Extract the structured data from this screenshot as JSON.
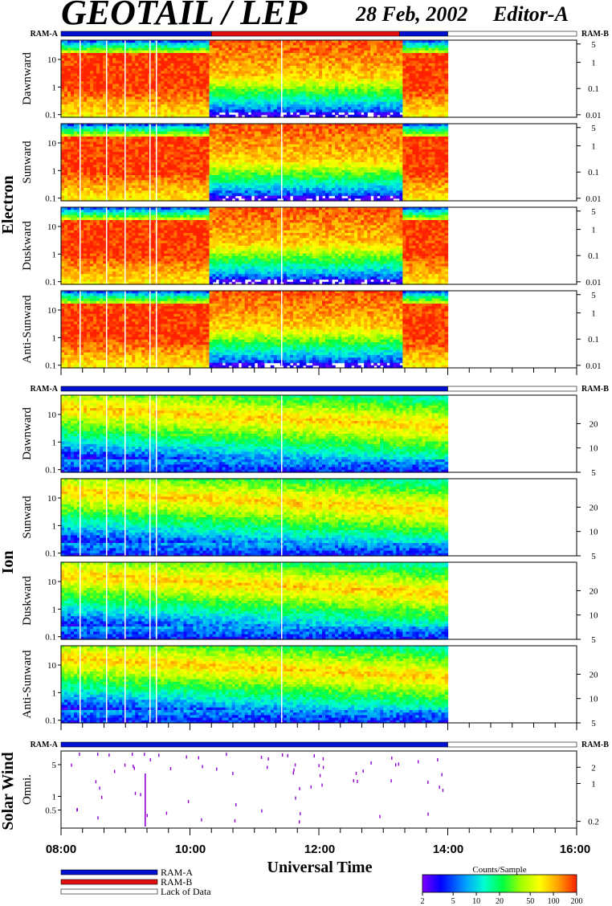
{
  "header": {
    "title": "GEOTAIL / LEP",
    "date": "28 Feb, 2002",
    "editor": "Editor-A"
  },
  "colors": {
    "ram_a": "#0010d0",
    "ram_b": "#e01010",
    "lack_of_data": "#ffffff",
    "colormap": [
      "#8000ff",
      "#0000ff",
      "#00a0ff",
      "#00ffd0",
      "#00ff40",
      "#a0ff00",
      "#ffff00",
      "#ffa000",
      "#ff2000"
    ]
  },
  "status_bars": [
    {
      "label_left": "RAM-A",
      "label_right": "RAM-B",
      "segments": [
        {
          "from": "08:00",
          "to": "10:20",
          "mode": "RAM-A"
        },
        {
          "from": "10:20",
          "to": "13:15",
          "mode": "RAM-B"
        },
        {
          "from": "13:15",
          "to": "14:00",
          "mode": "RAM-A"
        },
        {
          "from": "14:00",
          "to": "16:00",
          "mode": "Lack of Data"
        }
      ]
    },
    {
      "label_left": "RAM-A",
      "label_right": "RAM-B",
      "segments": [
        {
          "from": "08:00",
          "to": "14:00",
          "mode": "RAM-A"
        },
        {
          "from": "14:00",
          "to": "16:00",
          "mode": "Lack of Data"
        }
      ]
    },
    {
      "label_left": "RAM-A",
      "label_right": "RAM-B",
      "segments": [
        {
          "from": "08:00",
          "to": "14:00",
          "mode": "RAM-A"
        },
        {
          "from": "14:00",
          "to": "16:00",
          "mode": "Lack of Data"
        }
      ]
    }
  ],
  "chart_data": {
    "type": "heatmap",
    "x_axis": {
      "range": [
        "08:00",
        "16:00"
      ],
      "tick_labels": [
        "08:00",
        "10:00",
        "12:00",
        "14:00",
        "16:00"
      ],
      "title": "Universal Time"
    },
    "data_end": "14:00",
    "groups": [
      {
        "name": "Electron",
        "left_ticks": [
          "0.1",
          "1",
          "10"
        ],
        "left_range": [
          0.08,
          50
        ],
        "right_ticks": [
          "0.01",
          "0.1",
          "1",
          "5"
        ],
        "right_range": [
          0.008,
          7
        ],
        "panels": [
          "Dawnward",
          "Sunward",
          "Duskward",
          "Anti-Sunward"
        ]
      },
      {
        "name": "Ion",
        "left_ticks": [
          "0.1",
          "1",
          "10"
        ],
        "left_range": [
          0.08,
          50
        ],
        "right_ticks": [
          "5",
          "10",
          "20"
        ],
        "right_range": [
          5,
          45
        ],
        "panels": [
          "Dawnward",
          "Sunward",
          "Duskward",
          "Anti-Sunward"
        ]
      },
      {
        "name": "Solar Wind",
        "left_ticks": [
          "0.5",
          "1",
          "5"
        ],
        "left_range": [
          0.2,
          10
        ],
        "right_ticks": [
          "0.2",
          "1",
          "2"
        ],
        "right_range": [
          0.15,
          4
        ],
        "panels": [
          "Omni."
        ]
      }
    ],
    "colorbar": {
      "title": "Counts/Sample",
      "ticks": [
        "2",
        "5",
        "10",
        "20",
        "50",
        "100",
        "200"
      ],
      "range": [
        2,
        200
      ],
      "scale": "log"
    },
    "legend": [
      {
        "label": "RAM-A",
        "color": "#0010d0"
      },
      {
        "label": "RAM-B",
        "color": "#e01010"
      },
      {
        "label": "Lack of Data",
        "color": "#ffffff"
      }
    ]
  }
}
